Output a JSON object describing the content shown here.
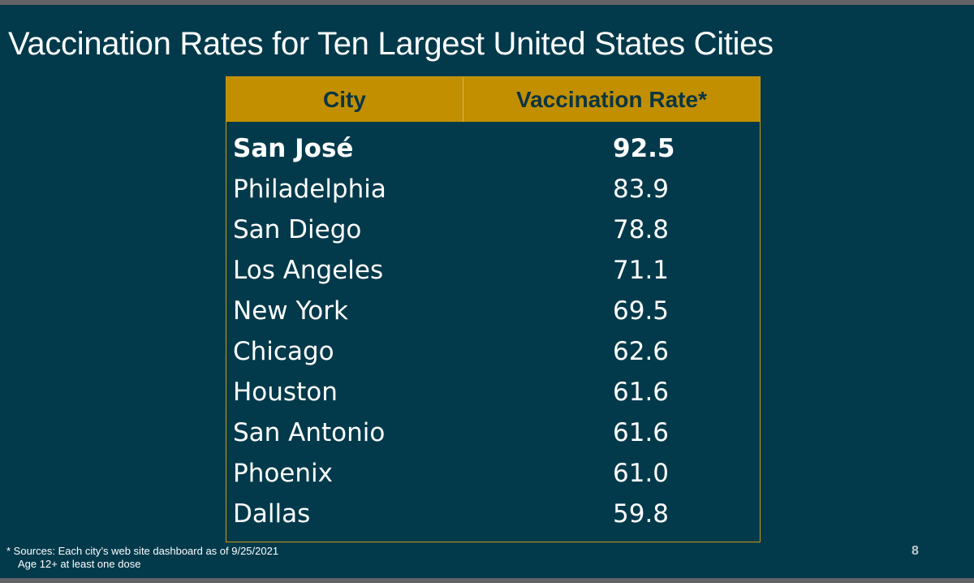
{
  "slide": {
    "title": "Vaccination Rates for Ten Largest United States Cities",
    "page_number": "8"
  },
  "table": {
    "headers": {
      "city": "City",
      "rate": "Vaccination Rate*"
    },
    "rows": [
      {
        "city": "San José",
        "rate": "92.5"
      },
      {
        "city": "Philadelphia",
        "rate": "83.9"
      },
      {
        "city": "San Diego",
        "rate": "78.8"
      },
      {
        "city": "Los Angeles",
        "rate": "71.1"
      },
      {
        "city": "New York",
        "rate": "69.5"
      },
      {
        "city": "Chicago",
        "rate": "62.6"
      },
      {
        "city": "Houston",
        "rate": "61.6"
      },
      {
        "city": "San Antonio",
        "rate": "61.6"
      },
      {
        "city": "Phoenix",
        "rate": "61.0"
      },
      {
        "city": "Dallas",
        "rate": "59.8"
      }
    ]
  },
  "footnote": {
    "line1": "* Sources: Each city’s web site dashboard as of 9/25/2021",
    "line2": "Age 12+ at least one dose"
  },
  "colors": {
    "background": "#023a4b",
    "header_gold": "#c28f00",
    "border_gold": "#c49b14"
  }
}
